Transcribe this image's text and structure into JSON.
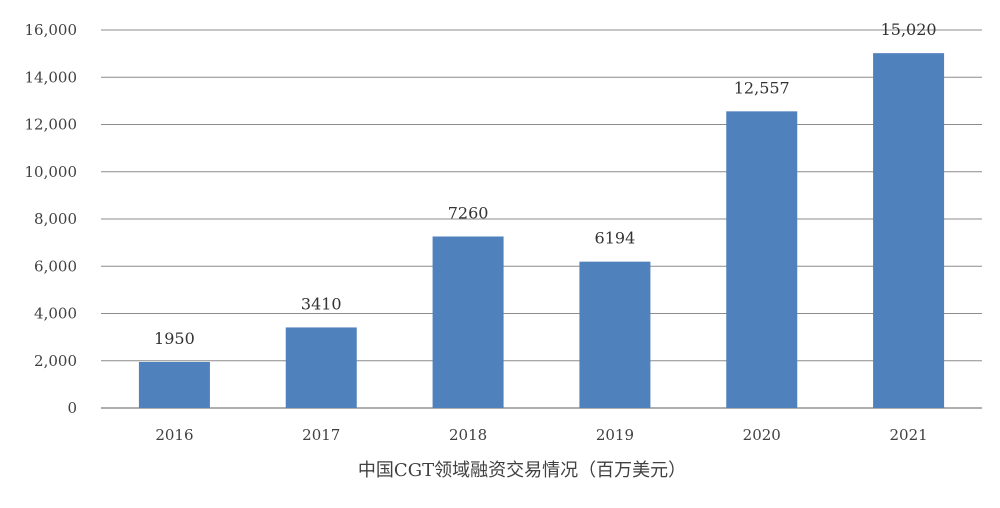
{
  "chart_data": {
    "type": "bar",
    "title": "中国CGT领域融资交易情况（百万美元）",
    "xlabel": "",
    "ylabel": "",
    "categories": [
      "2016",
      "2017",
      "2018",
      "2019",
      "2020",
      "2021"
    ],
    "values": [
      1950,
      3410,
      7260,
      6194,
      12557,
      15020
    ],
    "data_labels": [
      "1950",
      "3410",
      "7260",
      "6194",
      "12,557",
      "15,020"
    ],
    "ylim": [
      0,
      16000
    ],
    "yticks": [
      0,
      2000,
      4000,
      6000,
      8000,
      10000,
      12000,
      14000,
      16000
    ],
    "ytick_labels": [
      "0",
      "2,000",
      "4,000",
      "6,000",
      "8,000",
      "10,000",
      "12,000",
      "14,000",
      "16,000"
    ],
    "grid": true,
    "legend": "none",
    "colors": {
      "bar": "#4f81bd",
      "grid": "#8c8c8c",
      "text": "#404040"
    }
  }
}
